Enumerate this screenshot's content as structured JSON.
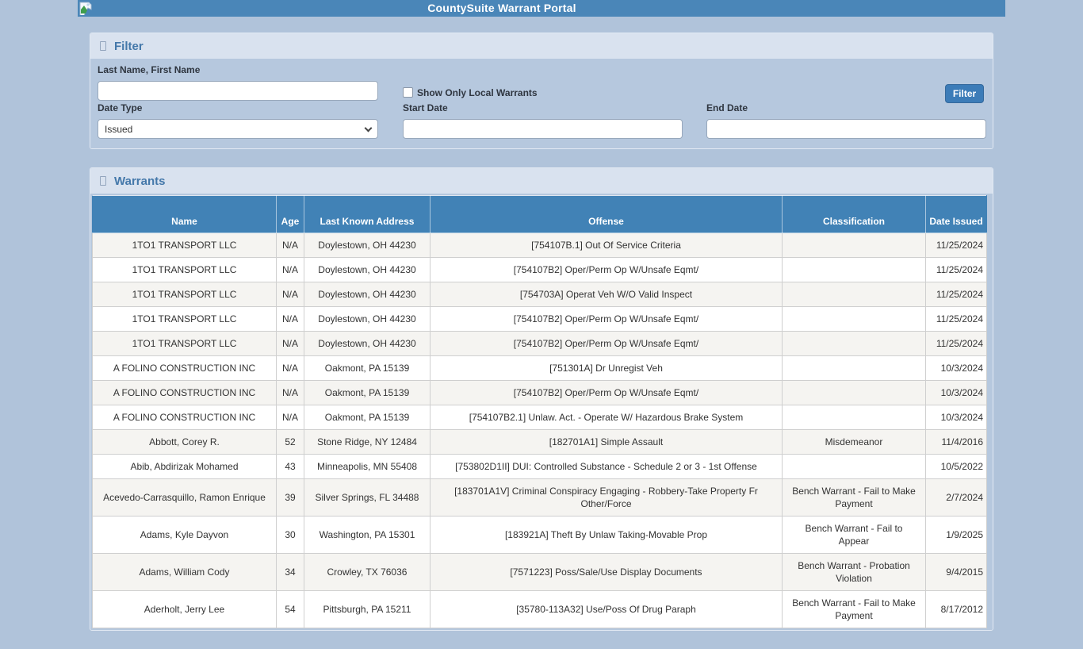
{
  "app": {
    "title": "CountySuite Warrant Portal"
  },
  "filter_panel": {
    "title": "Filter",
    "name_label": "Last Name, First Name",
    "name_value": "",
    "show_local_label": "Show Only Local Warrants",
    "show_local_checked": false,
    "date_type_label": "Date Type",
    "date_type_value": "Issued",
    "start_date_label": "Start Date",
    "start_date_value": "",
    "end_date_label": "End Date",
    "end_date_value": "",
    "filter_button_label": "Filter"
  },
  "warrants_panel": {
    "title": "Warrants",
    "columns": [
      "Name",
      "Age",
      "Last Known Address",
      "Offense",
      "Classification",
      "Date Issued"
    ],
    "rows": [
      {
        "name": "1TO1 TRANSPORT LLC",
        "age": "N/A",
        "address": "Doylestown, OH 44230",
        "offense": "[754107B.1] Out Of Service Criteria",
        "classification": "",
        "date_issued": "11/25/2024"
      },
      {
        "name": "1TO1 TRANSPORT LLC",
        "age": "N/A",
        "address": "Doylestown, OH 44230",
        "offense": "[754107B2] Oper/Perm Op W/Unsafe Eqmt/",
        "classification": "",
        "date_issued": "11/25/2024"
      },
      {
        "name": "1TO1 TRANSPORT LLC",
        "age": "N/A",
        "address": "Doylestown, OH 44230",
        "offense": "[754703A] Operat Veh W/O Valid Inspect",
        "classification": "",
        "date_issued": "11/25/2024"
      },
      {
        "name": "1TO1 TRANSPORT LLC",
        "age": "N/A",
        "address": "Doylestown, OH 44230",
        "offense": "[754107B2] Oper/Perm Op W/Unsafe Eqmt/",
        "classification": "",
        "date_issued": "11/25/2024"
      },
      {
        "name": "1TO1 TRANSPORT LLC",
        "age": "N/A",
        "address": "Doylestown, OH 44230",
        "offense": "[754107B2] Oper/Perm Op W/Unsafe Eqmt/",
        "classification": "",
        "date_issued": "11/25/2024"
      },
      {
        "name": "A FOLINO CONSTRUCTION INC",
        "age": "N/A",
        "address": "Oakmont, PA 15139",
        "offense": "[751301A] Dr Unregist Veh",
        "classification": "",
        "date_issued": "10/3/2024"
      },
      {
        "name": "A FOLINO CONSTRUCTION INC",
        "age": "N/A",
        "address": "Oakmont, PA 15139",
        "offense": "[754107B2] Oper/Perm Op W/Unsafe Eqmt/",
        "classification": "",
        "date_issued": "10/3/2024"
      },
      {
        "name": "A FOLINO CONSTRUCTION INC",
        "age": "N/A",
        "address": "Oakmont, PA 15139",
        "offense": "[754107B2.1] Unlaw. Act. - Operate W/ Hazardous Brake System",
        "classification": "",
        "date_issued": "10/3/2024"
      },
      {
        "name": "Abbott, Corey R.",
        "age": "52",
        "address": "Stone Ridge, NY 12484",
        "offense": "[182701A1] Simple Assault",
        "classification": "Misdemeanor",
        "date_issued": "11/4/2016"
      },
      {
        "name": "Abib, Abdirizak Mohamed",
        "age": "43",
        "address": "Minneapolis, MN 55408",
        "offense": "[753802D1II] DUI: Controlled Substance - Schedule 2 or 3 - 1st Offense",
        "classification": "",
        "date_issued": "10/5/2022"
      },
      {
        "name": "Acevedo-Carrasquillo, Ramon Enrique",
        "age": "39",
        "address": "Silver Springs, FL 34488",
        "offense": "[183701A1V] Criminal Conspiracy Engaging - Robbery-Take Property Fr Other/Force",
        "classification": "Bench Warrant - Fail to Make Payment",
        "date_issued": "2/7/2024"
      },
      {
        "name": "Adams, Kyle Dayvon",
        "age": "30",
        "address": "Washington, PA 15301",
        "offense": "[183921A] Theft By Unlaw Taking-Movable Prop",
        "classification": "Bench Warrant - Fail to Appear",
        "date_issued": "1/9/2025"
      },
      {
        "name": "Adams, William Cody",
        "age": "34",
        "address": "Crowley, TX 76036",
        "offense": "[7571223] Poss/Sale/Use Display Documents",
        "classification": "Bench Warrant - Probation Violation",
        "date_issued": "9/4/2015"
      },
      {
        "name": "Aderholt, Jerry Lee",
        "age": "54",
        "address": "Pittsburgh, PA 15211",
        "offense": "[35780-113A32] Use/Poss Of Drug Paraph",
        "classification": "Bench Warrant - Fail to Make Payment",
        "date_issued": "8/17/2012"
      }
    ]
  },
  "colors": {
    "page_bg": "#b0c3da",
    "header_bar": "#4a86b8",
    "panel_header_bg": "#d9e2ef",
    "panel_title": "#4478aa",
    "panel_body_bg": "#b6c8de",
    "filter_button_bg": "#3c7cb8",
    "table_header_bg": "#4182b6",
    "row_alt_bg": "#f5f4f1",
    "cell_text": "#333333"
  }
}
